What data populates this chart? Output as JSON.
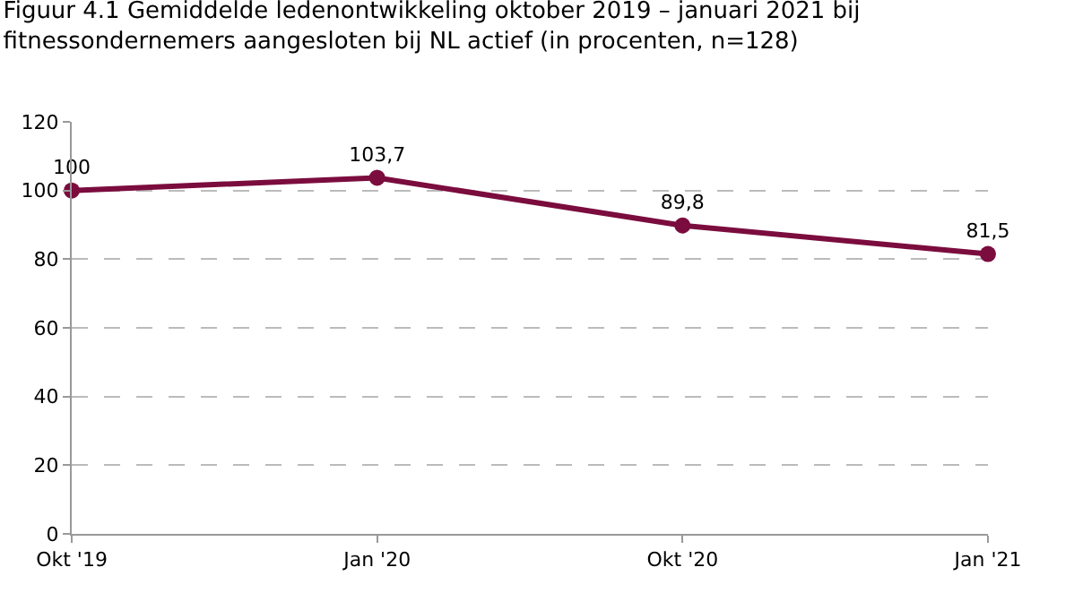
{
  "chart_data": {
    "type": "line",
    "title": "Figuur 4.1 Gemiddelde ledenontwikkeling oktober 2019 – januari 2021 bij\nfitnessondernemers aangesloten bij NL actief (in procenten, n=128)",
    "categories": [
      "Okt '19",
      "Jan '20",
      "Okt '20",
      "Jan '21"
    ],
    "series": [
      {
        "color": "#7b0c3e",
        "values": [
          100,
          103.7,
          89.8,
          81.5
        ],
        "value_labels": [
          "100",
          "103,7",
          "89,8",
          "81,5"
        ]
      }
    ],
    "ylim": [
      0,
      120
    ],
    "yticks": [
      0,
      20,
      40,
      60,
      80,
      100,
      120
    ],
    "grid": "y",
    "marker": "circle",
    "line_style": "solid",
    "legend": false
  }
}
